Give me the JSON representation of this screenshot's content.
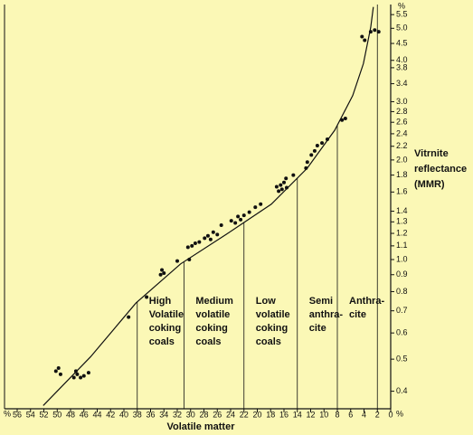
{
  "chart_data": {
    "type": "scatter",
    "x_label": "Volatile matter",
    "y_label": [
      "Vitrnite",
      "reflectance",
      "(MMR)"
    ],
    "x_unit": "%",
    "y_unit": "%",
    "log_y": true,
    "xlim": [
      57.9,
      0
    ],
    "ylim": [
      0.354,
      5.9
    ],
    "xticks": [
      56,
      54,
      52,
      50,
      48,
      46,
      44,
      42,
      40,
      38,
      36,
      34,
      32,
      30,
      28,
      26,
      24,
      22,
      20,
      18,
      16,
      14,
      12,
      10,
      8,
      6,
      4,
      2,
      0
    ],
    "yticks": [
      0.4,
      0.5,
      0.6,
      0.7,
      0.8,
      0.9,
      {
        "value": 1,
        "label": "1.0"
      },
      1.1,
      1.2,
      1.3,
      1.4,
      1.6,
      1.8,
      {
        "value": 2,
        "label": "2.0"
      },
      2.2,
      2.4,
      2.6,
      2.8,
      {
        "value": 3,
        "label": "3.0"
      },
      3.4,
      3.8,
      {
        "value": 4,
        "label": "4.0"
      },
      4.5,
      {
        "value": 5,
        "label": "5.0"
      },
      5.5
    ],
    "series": [
      {
        "type": "scatter",
        "color": "#111111",
        "x": [
          50.2,
          49.8,
          49.5,
          47.5,
          47.0,
          46.5,
          46.0,
          45.3,
          47.2,
          39.3,
          36.6,
          34.3,
          34.0,
          34.5,
          32.0,
          30.2,
          30.4,
          29.8,
          29.3,
          28.7,
          27.9,
          27.4,
          27.0,
          26.6,
          26.0,
          25.4,
          23.9,
          23.3,
          22.9,
          22.5,
          22.0,
          21.2,
          20.3,
          19.5,
          17.1,
          16.5,
          16.3,
          16.0,
          15.7,
          15.6,
          16.8,
          14.6,
          12.7,
          12.5,
          11.9,
          11.4,
          11.0,
          10.3,
          9.5,
          7.3,
          6.8,
          4.3,
          3.9,
          3.0,
          2.4,
          1.8
        ],
        "values": [
          0.46,
          0.47,
          0.45,
          0.44,
          0.45,
          0.44,
          0.445,
          0.455,
          0.46,
          0.67,
          0.77,
          0.93,
          0.91,
          0.9,
          0.99,
          1.0,
          1.09,
          1.1,
          1.12,
          1.13,
          1.16,
          1.18,
          1.15,
          1.21,
          1.19,
          1.27,
          1.31,
          1.29,
          1.35,
          1.32,
          1.36,
          1.39,
          1.44,
          1.47,
          1.66,
          1.68,
          1.63,
          1.71,
          1.76,
          1.65,
          1.61,
          1.8,
          1.89,
          1.97,
          2.07,
          2.13,
          2.21,
          2.25,
          2.31,
          2.64,
          2.67,
          4.72,
          4.6,
          4.88,
          4.94,
          4.88
        ]
      },
      {
        "type": "line",
        "color": "#111111",
        "x": [
          52.1,
          45.0,
          38.2,
          31.5,
          24.7,
          17.9,
          12.5,
          8.4,
          5.7,
          4.1,
          3.0,
          2.6
        ],
        "values": [
          0.362,
          0.508,
          0.739,
          0.97,
          1.19,
          1.47,
          1.89,
          2.46,
          3.13,
          3.91,
          5.03,
          5.8
        ]
      }
    ],
    "boundaries": [
      38,
      31,
      22,
      14,
      8,
      2
    ],
    "region_labels": [
      [
        "High",
        "Volatile",
        "coking",
        "coals"
      ],
      [
        "Medium",
        "volatile",
        "coking",
        "coals"
      ],
      [
        "Low",
        "volatile",
        "coking",
        "coals"
      ],
      [
        "Semi",
        "anthra-",
        "cite"
      ],
      [
        "Anthra-",
        "cite"
      ]
    ]
  }
}
